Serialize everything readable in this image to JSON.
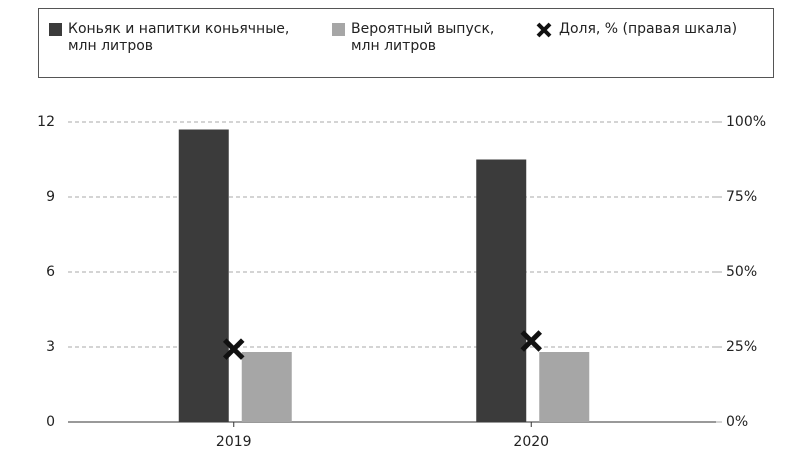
{
  "chart_data": {
    "type": "bar",
    "categories": [
      "2019",
      "2020"
    ],
    "series": [
      {
        "name": "Коньяк и напитки коньячные, млн литров",
        "color": "#3b3b3b",
        "values": [
          11.7,
          10.5
        ]
      },
      {
        "name": "Вероятный выпуск, млн литров",
        "color": "#a6a6a6",
        "values": [
          2.8,
          2.8
        ]
      },
      {
        "name": "Доля, % (правая шкала)",
        "color": "#111111",
        "type": "scatter",
        "axis": "y2",
        "values": [
          24.3,
          27
        ]
      }
    ],
    "ylim": [
      0,
      12
    ],
    "yticks": [
      0,
      3,
      6,
      9,
      12
    ],
    "y2lim": [
      0,
      100
    ],
    "y2ticks": [
      {
        "value": 0,
        "label": "0%"
      },
      {
        "value": 25,
        "label": "25%"
      },
      {
        "value": 50,
        "label": "50%"
      },
      {
        "value": 75,
        "label": "75%"
      },
      {
        "value": 100,
        "label": "100%"
      }
    ],
    "grid": true,
    "legend": "top"
  }
}
